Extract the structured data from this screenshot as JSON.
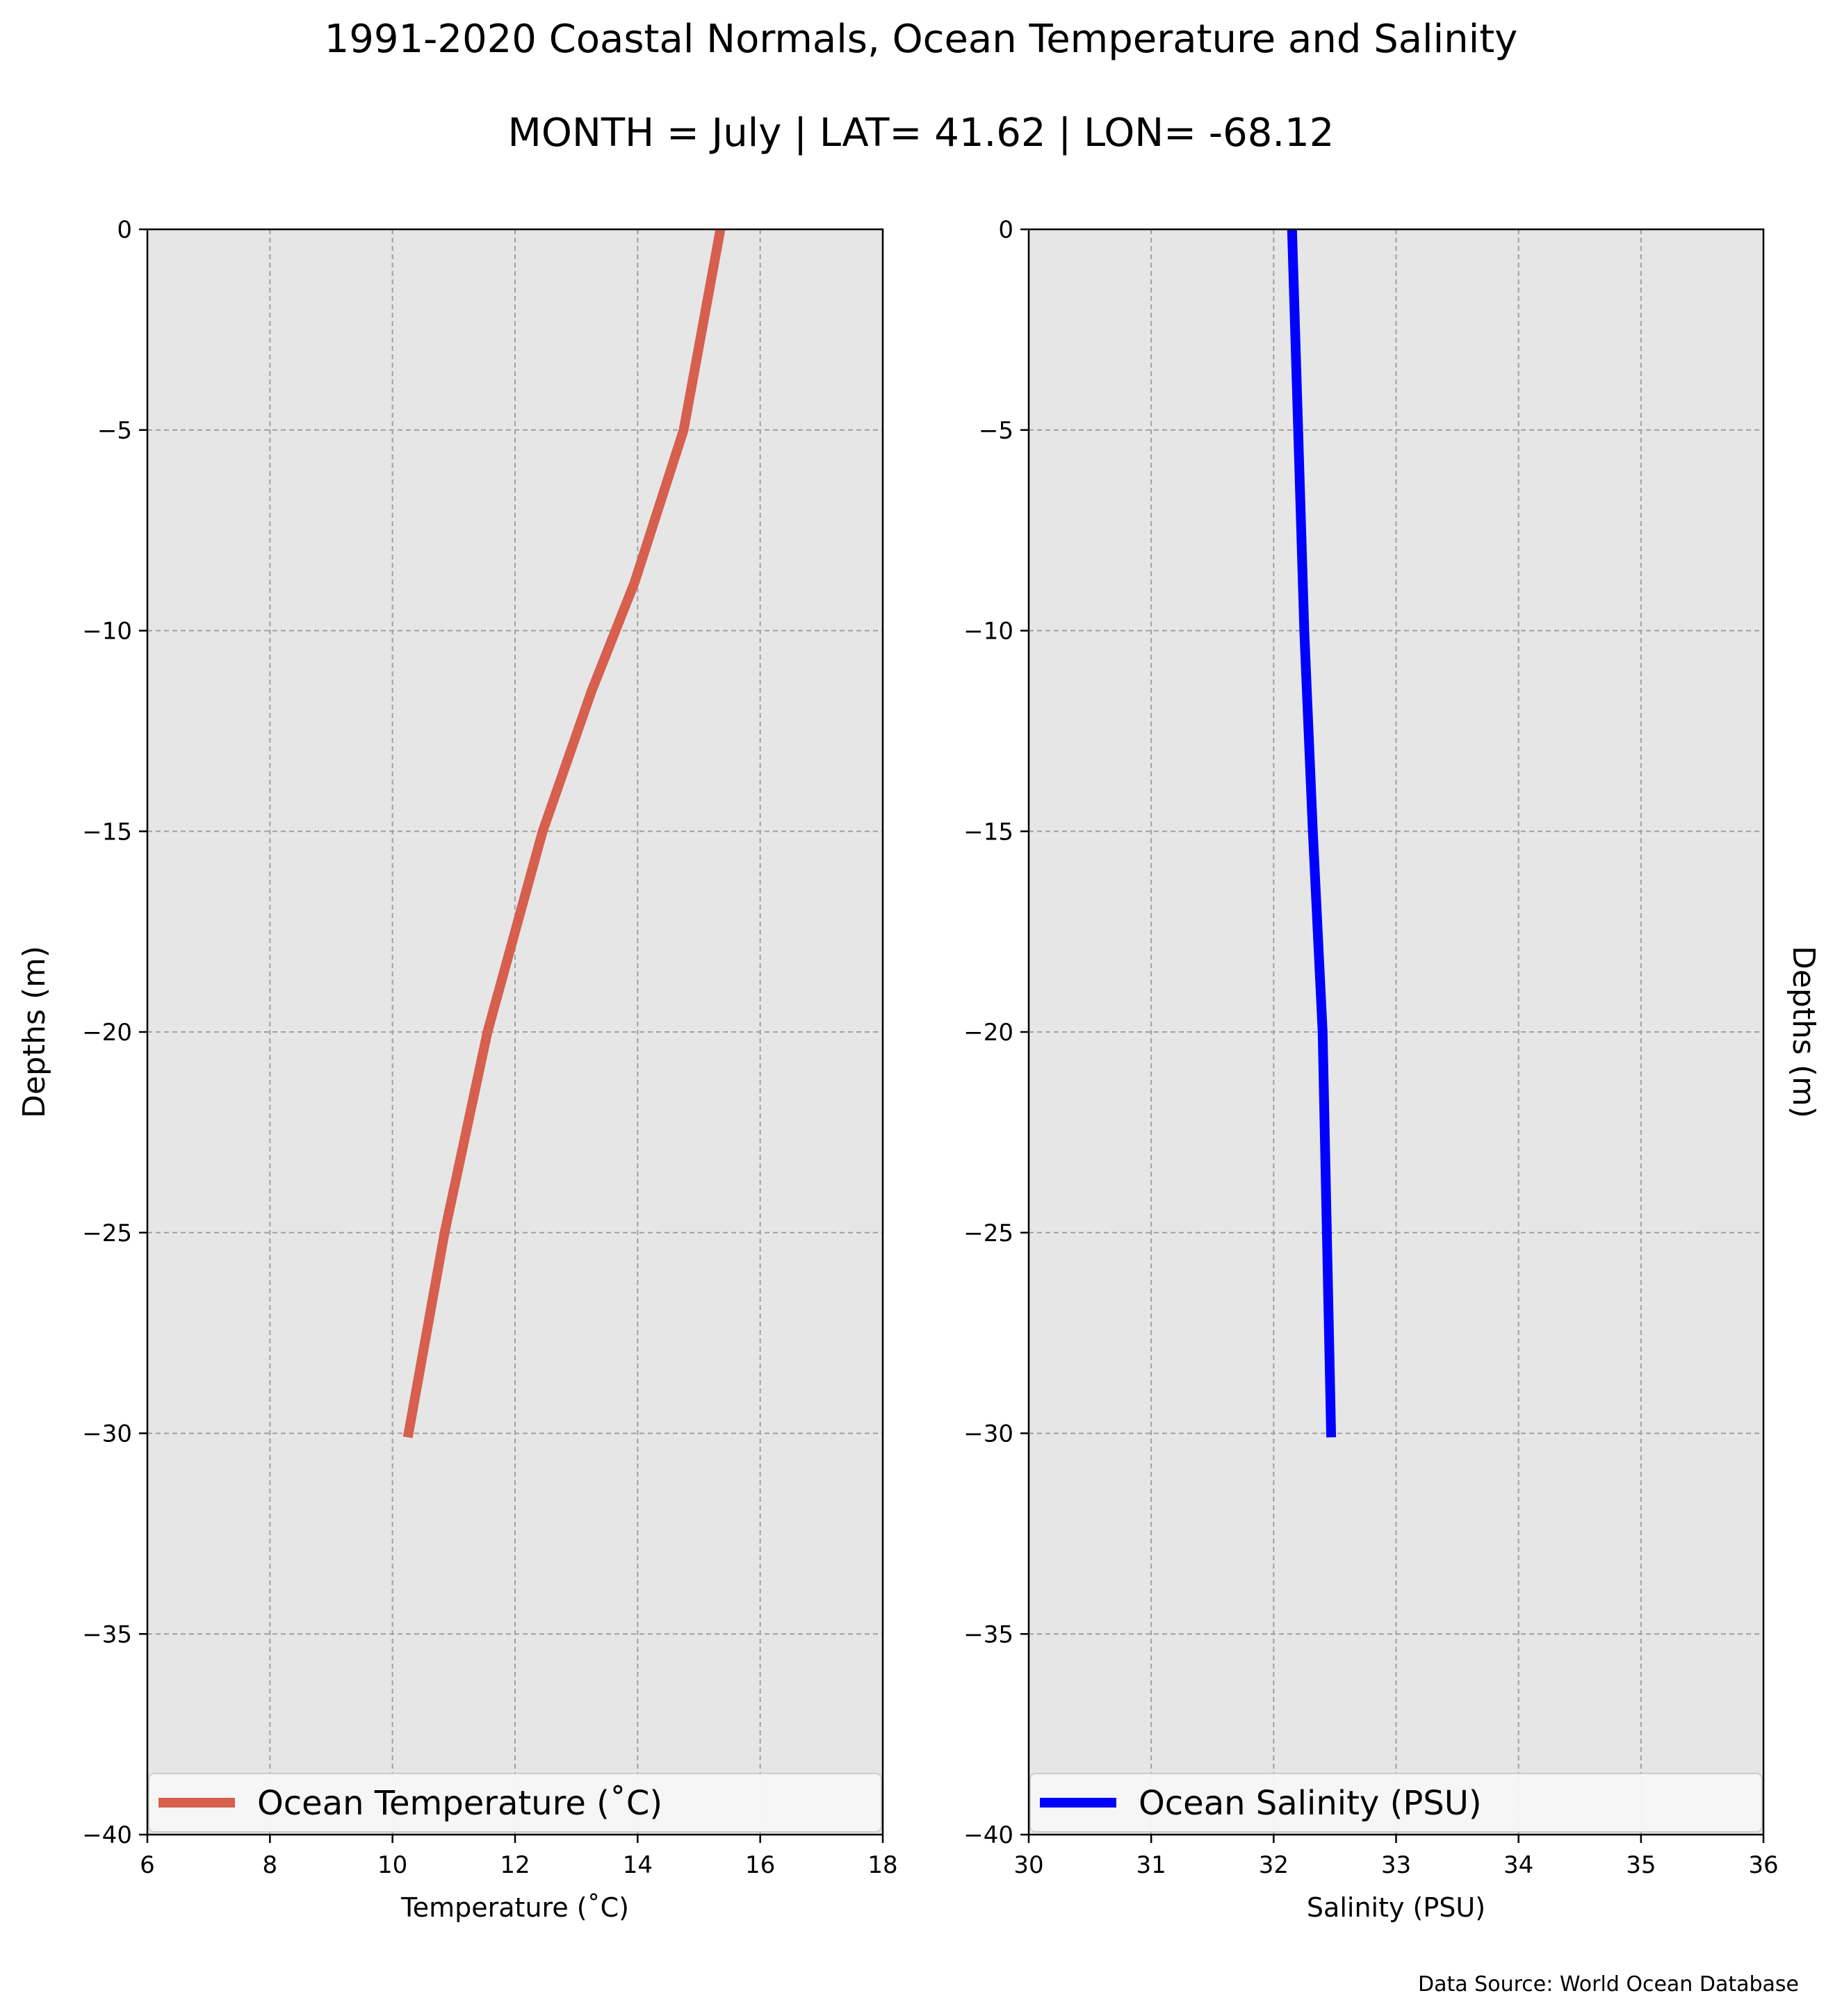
{
  "figure": {
    "title": "1991-2020 Coastal Normals, Ocean Temperature and Salinity",
    "subtitle": "MONTH = July | LAT= 41.62 | LON= -68.12",
    "source_note": "Data Source: World Ocean Database"
  },
  "colors": {
    "background": "#e6e6e6",
    "grid": "#a0a0a0",
    "temperature": "#d65f4e",
    "salinity": "#0000ff"
  },
  "chart_data": [
    {
      "type": "line",
      "xlabel": "Temperature ($^\\circ$C)",
      "xlabel_display": "Temperature (˚C)",
      "ylabel": "Depths (m)",
      "xlim": [
        6,
        18
      ],
      "ylim": [
        -40,
        0
      ],
      "xticks": [
        6,
        8,
        10,
        12,
        14,
        16,
        18
      ],
      "yticks": [
        0,
        -5,
        -10,
        -15,
        -20,
        -25,
        -30,
        -35,
        -40
      ],
      "xtick_labels": [
        "6",
        "8",
        "10",
        "12",
        "14",
        "16",
        "18"
      ],
      "ytick_labels": [
        "0",
        "−5",
        "−10",
        "−15",
        "−20",
        "−25",
        "−30",
        "−35",
        "−40"
      ],
      "grid": true,
      "legend_position": "lower center",
      "series": [
        {
          "name": "Ocean Temperature (˚C)",
          "x": [
            15.35,
            14.75,
            13.95,
            13.25,
            12.45,
            11.55,
            10.85,
            10.25
          ],
          "y": [
            0,
            -5,
            -8.8,
            -11.5,
            -15,
            -20,
            -25,
            -30.1
          ]
        }
      ]
    },
    {
      "type": "line",
      "xlabel": "Salinity (PSU)",
      "ylabel": "Depths (m)",
      "xlim": [
        30,
        36
      ],
      "ylim": [
        -40,
        0
      ],
      "xticks": [
        30,
        31,
        32,
        33,
        34,
        35,
        36
      ],
      "yticks": [
        0,
        -5,
        -10,
        -15,
        -20,
        -25,
        -30,
        -35,
        -40
      ],
      "xtick_labels": [
        "30",
        "31",
        "32",
        "33",
        "34",
        "35",
        "36"
      ],
      "ytick_labels": [
        "0",
        "−5",
        "−10",
        "−15",
        "−20",
        "−25",
        "−30",
        "−35",
        "−40"
      ],
      "grid": true,
      "legend_position": "lower center",
      "series": [
        {
          "name": "Ocean Salinity (PSU)",
          "x": [
            32.15,
            32.2,
            32.25,
            32.32,
            32.4,
            32.47
          ],
          "y": [
            0,
            -5,
            -10,
            -15,
            -20,
            -30.1
          ]
        }
      ]
    }
  ]
}
